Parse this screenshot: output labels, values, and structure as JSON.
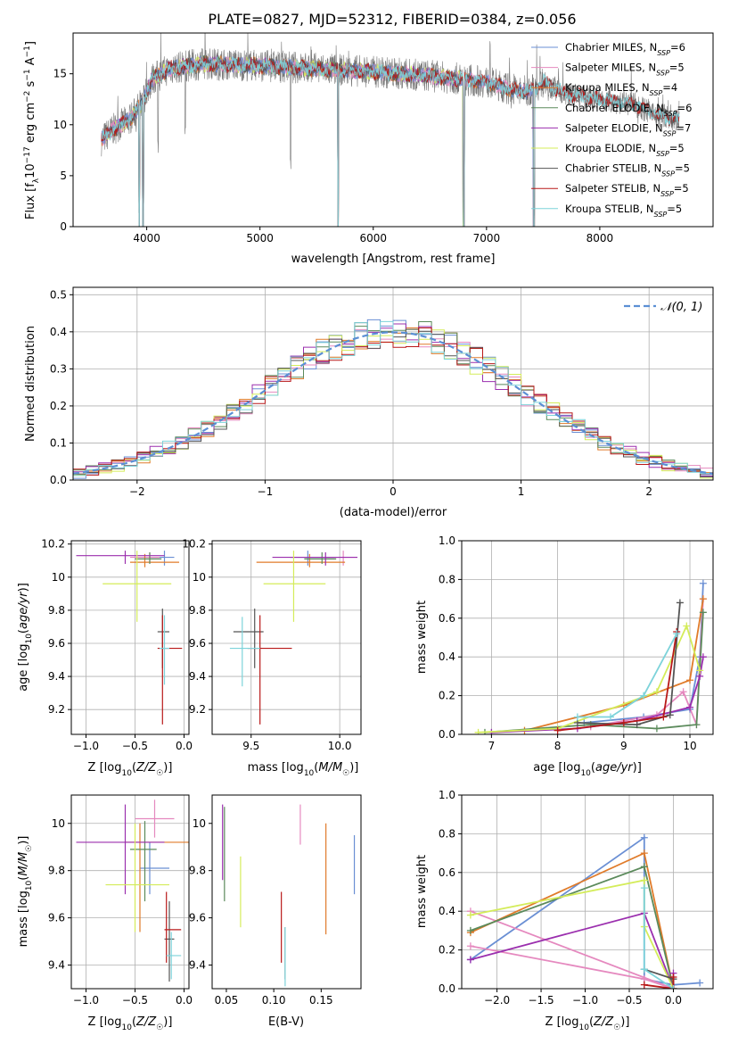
{
  "figure_title": "PLATE=0827, MJD=52312, FIBERID=0384, z=0.056",
  "colors": {
    "Chabrier MILES": "#6a8fd4",
    "Salpeter MILES": "#e589bf",
    "Kroupa MILES": "#e07b2a",
    "Chabrier ELODIE": "#5b8a5b",
    "Salpeter ELODIE": "#9b2fae",
    "Kroupa ELODIE": "#d4ec5a",
    "Chabrier STELIB": "#555555",
    "Salpeter STELIB": "#b81818",
    "Kroupa STELIB": "#7dd3da",
    "data_spectrum": "#777777",
    "normal_curve": "#5b8fd4"
  },
  "chart_data": [
    {
      "id": "spectrum",
      "type": "line",
      "xlabel": "wavelength [Angstrom, rest frame]",
      "ylabel": "Flux [f_λ 10^-17 erg cm^-2 s^-1 A^-1]",
      "xlim": [
        3350,
        9000
      ],
      "ylim": [
        0,
        19
      ],
      "xticks": [
        4000,
        5000,
        6000,
        7000,
        8000
      ],
      "yticks": [
        0,
        5,
        10,
        15
      ],
      "grid": false,
      "legend_position": "top-right",
      "legend": [
        {
          "name": "Chabrier MILES",
          "nssp": "6"
        },
        {
          "name": "Salpeter MILES",
          "nssp": "5"
        },
        {
          "name": "Kroupa MILES",
          "nssp": "4"
        },
        {
          "name": "Chabrier ELODIE",
          "nssp": "6"
        },
        {
          "name": "Salpeter ELODIE",
          "nssp": "7"
        },
        {
          "name": "Kroupa ELODIE",
          "nssp": "5"
        },
        {
          "name": "Chabrier STELIB",
          "nssp": "5"
        },
        {
          "name": "Salpeter STELIB",
          "nssp": "5"
        },
        {
          "name": "Kroupa STELIB",
          "nssp": "5"
        }
      ],
      "continuum": [
        [
          3600,
          8.5
        ],
        [
          3700,
          9.5
        ],
        [
          3850,
          10.5
        ],
        [
          3950,
          12
        ],
        [
          4050,
          14.5
        ],
        [
          4200,
          15.5
        ],
        [
          4500,
          16
        ],
        [
          5000,
          15.8
        ],
        [
          5500,
          15.5
        ],
        [
          6000,
          15.2
        ],
        [
          6500,
          14.8
        ],
        [
          7000,
          14.2
        ],
        [
          7200,
          13.5
        ],
        [
          7300,
          13.2
        ],
        [
          7400,
          13.4
        ],
        [
          7500,
          14.2
        ],
        [
          7700,
          13
        ],
        [
          8000,
          12.5
        ],
        [
          8300,
          12
        ],
        [
          8500,
          11
        ],
        [
          8700,
          10.5
        ]
      ],
      "dips": [
        [
          3933,
          0
        ],
        [
          3968,
          0
        ],
        [
          4100,
          7
        ],
        [
          4340,
          8
        ],
        [
          5270,
          5
        ],
        [
          5690,
          0
        ],
        [
          6800,
          0
        ],
        [
          7420,
          0
        ]
      ]
    },
    {
      "id": "residuals",
      "type": "line",
      "xlabel": "(data-model)/error",
      "ylabel": "Normed distribution",
      "xlim": [
        -2.5,
        2.5
      ],
      "ylim": [
        0,
        0.52
      ],
      "xticks": [
        -2,
        -1,
        0,
        1,
        2
      ],
      "xtick_labels": [
        "−2",
        "−1",
        "0",
        "1",
        "2"
      ],
      "yticks": [
        0.0,
        0.1,
        0.2,
        0.3,
        0.4,
        0.5
      ],
      "grid": true,
      "legend_position": "top-right",
      "legend_label": "𝒩(0, 1)",
      "bin_width": 0.1
    },
    {
      "id": "age-vs-Z",
      "type": "scatter",
      "xlabel": "Z [log10(Z/Z☉)]",
      "ylabel": "age  [log10(age/yr)]",
      "xlim": [
        -1.15,
        0.05
      ],
      "ylim": [
        9.05,
        10.22
      ],
      "xticks": [
        -1.0,
        -0.5,
        0.0
      ],
      "xtick_labels": [
        "−1.0",
        "−0.5",
        "0.0"
      ],
      "yticks": [
        9.2,
        9.4,
        9.6,
        9.8,
        10.0,
        10.2
      ],
      "grid": true,
      "points": [
        {
          "model": "Chabrier MILES",
          "x": -0.2,
          "y": 10.12,
          "xerr": [
            0.15,
            0.1
          ],
          "yerr": [
            0.05,
            0.04
          ]
        },
        {
          "model": "Salpeter MILES",
          "x": -0.35,
          "y": 10.12,
          "xerr": [
            0.2,
            0.1
          ],
          "yerr": [
            0.03,
            0.03
          ]
        },
        {
          "model": "Kroupa MILES",
          "x": -0.4,
          "y": 10.09,
          "xerr": [
            0.15,
            0.35
          ],
          "yerr": [
            0.03,
            0.05
          ]
        },
        {
          "model": "Chabrier ELODIE",
          "x": -0.35,
          "y": 10.11,
          "xerr": [
            0.15,
            0.12
          ],
          "yerr": [
            0.03,
            0.04
          ]
        },
        {
          "model": "Salpeter ELODIE",
          "x": -0.6,
          "y": 10.13,
          "xerr": [
            0.5,
            0.4
          ],
          "yerr": [
            0.05,
            0.03
          ]
        },
        {
          "model": "Kroupa ELODIE",
          "x": -0.48,
          "y": 9.96,
          "xerr": [
            0.35,
            0.35
          ],
          "yerr": [
            0.23,
            0.2
          ]
        },
        {
          "model": "Chabrier STELIB",
          "x": -0.22,
          "y": 9.67,
          "xerr": [
            0.05,
            0.07
          ],
          "yerr": [
            0.22,
            0.14
          ]
        },
        {
          "model": "Salpeter STELIB",
          "x": -0.22,
          "y": 9.57,
          "xerr": [
            0.05,
            0.2
          ],
          "yerr": [
            0.46,
            0.2
          ]
        },
        {
          "model": "Kroupa STELIB",
          "x": -0.2,
          "y": 9.57,
          "xerr": [
            0.05,
            0.05
          ],
          "yerr": [
            0.22,
            0.2
          ]
        }
      ]
    },
    {
      "id": "age-vs-mass",
      "type": "scatter",
      "xlabel": "mass [log10(M/M☉)]",
      "ylabel": "",
      "xlim": [
        9.28,
        10.12
      ],
      "ylim": [
        9.05,
        10.22
      ],
      "xticks": [
        9.5,
        10.0
      ],
      "xtick_labels": [
        "9.5",
        "10.0"
      ],
      "yticks": [
        9.2,
        9.4,
        9.6,
        9.8,
        10.0,
        10.2
      ],
      "grid": true,
      "points": [
        {
          "model": "Chabrier MILES",
          "x": 9.82,
          "y": 10.12,
          "xerr": [
            0.1,
            0.15
          ],
          "yerr": [
            0.05,
            0.04
          ]
        },
        {
          "model": "Salpeter MILES",
          "x": 10.02,
          "y": 10.12,
          "xerr": [
            0.1,
            0.08
          ],
          "yerr": [
            0.05,
            0.04
          ]
        },
        {
          "model": "Kroupa MILES",
          "x": 9.83,
          "y": 10.09,
          "xerr": [
            0.3,
            0.2
          ],
          "yerr": [
            0.03,
            0.05
          ]
        },
        {
          "model": "Chabrier ELODIE",
          "x": 9.9,
          "y": 10.11,
          "xerr": [
            0.1,
            0.08
          ],
          "yerr": [
            0.03,
            0.04
          ]
        },
        {
          "model": "Salpeter ELODIE",
          "x": 9.92,
          "y": 10.12,
          "xerr": [
            0.3,
            0.18
          ],
          "yerr": [
            0.05,
            0.03
          ]
        },
        {
          "model": "Kroupa ELODIE",
          "x": 9.74,
          "y": 9.96,
          "xerr": [
            0.17,
            0.18
          ],
          "yerr": [
            0.23,
            0.2
          ]
        },
        {
          "model": "Chabrier STELIB",
          "x": 9.52,
          "y": 9.67,
          "xerr": [
            0.12,
            0.05
          ],
          "yerr": [
            0.22,
            0.14
          ]
        },
        {
          "model": "Salpeter STELIB",
          "x": 9.55,
          "y": 9.57,
          "xerr": [
            0.07,
            0.18
          ],
          "yerr": [
            0.46,
            0.2
          ]
        },
        {
          "model": "Kroupa STELIB",
          "x": 9.45,
          "y": 9.57,
          "xerr": [
            0.07,
            0.1
          ],
          "yerr": [
            0.23,
            0.19
          ]
        }
      ]
    },
    {
      "id": "weight-vs-age",
      "type": "line",
      "xlabel": "age  [log10(age/yr)]",
      "ylabel": "mass weight",
      "xlim": [
        6.55,
        10.35
      ],
      "ylim": [
        0,
        1.0
      ],
      "xticks": [
        7,
        8,
        9,
        10
      ],
      "yticks": [
        0.0,
        0.2,
        0.4,
        0.6,
        0.8,
        1.0
      ],
      "grid": true,
      "series": [
        {
          "model": "Chabrier MILES",
          "x": [
            8.4,
            9.3,
            10.0,
            10.15,
            10.2
          ],
          "y": [
            0.06,
            0.09,
            0.13,
            0.4,
            0.78
          ]
        },
        {
          "model": "Salpeter MILES",
          "x": [
            8.5,
            9.5,
            9.9,
            10.1,
            10.2
          ],
          "y": [
            0.04,
            0.1,
            0.22,
            0.05,
            0.7
          ]
        },
        {
          "model": "Kroupa MILES",
          "x": [
            7.5,
            9.0,
            10.0,
            10.2
          ],
          "y": [
            0.02,
            0.15,
            0.28,
            0.7
          ]
        },
        {
          "model": "Chabrier ELODIE",
          "x": [
            6.9,
            8.5,
            9.5,
            10.1,
            10.2
          ],
          "y": [
            0.01,
            0.05,
            0.03,
            0.05,
            0.63
          ]
        },
        {
          "model": "Salpeter ELODIE",
          "x": [
            7.0,
            8.3,
            9.2,
            10.0,
            10.15,
            10.2
          ],
          "y": [
            0.01,
            0.03,
            0.07,
            0.14,
            0.3,
            0.4
          ]
        },
        {
          "model": "Kroupa ELODIE",
          "x": [
            6.8,
            8.0,
            9.5,
            9.95,
            10.15
          ],
          "y": [
            0.01,
            0.03,
            0.22,
            0.56,
            0.33
          ]
        },
        {
          "model": "Chabrier STELIB",
          "x": [
            8.3,
            9.2,
            9.7,
            9.85
          ],
          "y": [
            0.06,
            0.05,
            0.1,
            0.68
          ]
        },
        {
          "model": "Salpeter STELIB",
          "x": [
            8.0,
            9.0,
            9.6,
            9.8
          ],
          "y": [
            0.02,
            0.06,
            0.09,
            0.53
          ]
        },
        {
          "model": "Kroupa STELIB",
          "x": [
            8.3,
            8.8,
            9.3,
            9.8
          ],
          "y": [
            0.09,
            0.09,
            0.2,
            0.52
          ]
        }
      ]
    },
    {
      "id": "mass-vs-Z",
      "type": "scatter",
      "xlabel": "Z [log10(Z/Z☉)]",
      "ylabel": "mass [log10(M/M☉)]",
      "xlim": [
        -1.15,
        0.05
      ],
      "ylim": [
        9.3,
        10.12
      ],
      "xticks": [
        -1.0,
        -0.5,
        0.0
      ],
      "xtick_labels": [
        "−1.0",
        "−0.5",
        "0.0"
      ],
      "yticks": [
        9.4,
        9.6,
        9.8,
        10.0
      ],
      "grid": true,
      "points": [
        {
          "model": "Chabrier MILES",
          "x": -0.35,
          "y": 9.81,
          "xerr": [
            0.1,
            0.2
          ],
          "yerr": [
            0.11,
            0.11
          ]
        },
        {
          "model": "Salpeter MILES",
          "x": -0.3,
          "y": 10.02,
          "xerr": [
            0.2,
            0.2
          ],
          "yerr": [
            0.08,
            0.08
          ]
        },
        {
          "model": "Kroupa MILES",
          "x": -0.45,
          "y": 9.92,
          "xerr": [
            0.15,
            0.5
          ],
          "yerr": [
            0.38,
            0.08
          ]
        },
        {
          "model": "Chabrier ELODIE",
          "x": -0.4,
          "y": 9.89,
          "xerr": [
            0.15,
            0.12
          ],
          "yerr": [
            0.22,
            0.12
          ]
        },
        {
          "model": "Salpeter ELODIE",
          "x": -0.6,
          "y": 9.92,
          "xerr": [
            0.5,
            0.4
          ],
          "yerr": [
            0.22,
            0.16
          ]
        },
        {
          "model": "Kroupa ELODIE",
          "x": -0.5,
          "y": 9.74,
          "xerr": [
            0.3,
            0.35
          ],
          "yerr": [
            0.2,
            0.26
          ]
        },
        {
          "model": "Chabrier STELIB",
          "x": -0.15,
          "y": 9.51,
          "xerr": [
            0.05,
            0.05
          ],
          "yerr": [
            0.18,
            0.16
          ]
        },
        {
          "model": "Salpeter STELIB",
          "x": -0.18,
          "y": 9.55,
          "xerr": [
            0.02,
            0.15
          ],
          "yerr": [
            0.14,
            0.16
          ]
        },
        {
          "model": "Kroupa STELIB",
          "x": -0.13,
          "y": 9.44,
          "xerr": [
            0.05,
            0.1
          ],
          "yerr": [
            0.1,
            0.1
          ]
        }
      ]
    },
    {
      "id": "mass-vs-ebv",
      "type": "scatter",
      "xlabel": "E(B-V)",
      "ylabel": "",
      "xlim": [
        0.035,
        0.192
      ],
      "ylim": [
        9.3,
        10.12
      ],
      "xticks": [
        0.05,
        0.1,
        0.15
      ],
      "xtick_labels": [
        "0.05",
        "0.10",
        "0.15"
      ],
      "yticks": [
        9.4,
        9.6,
        9.8,
        10.0
      ],
      "grid": false,
      "points": [
        {
          "model": "Chabrier MILES",
          "x": 0.185,
          "y": 9.82,
          "yerr": [
            0.12,
            0.13
          ]
        },
        {
          "model": "Salpeter MILES",
          "x": 0.128,
          "y": 9.99,
          "yerr": [
            0.08,
            0.09
          ]
        },
        {
          "model": "Kroupa MILES",
          "x": 0.155,
          "y": 9.77,
          "yerr": [
            0.24,
            0.23
          ]
        },
        {
          "model": "Chabrier ELODIE",
          "x": 0.048,
          "y": 9.87,
          "yerr": [
            0.2,
            0.2
          ]
        },
        {
          "model": "Salpeter ELODIE",
          "x": 0.046,
          "y": 9.91,
          "yerr": [
            0.15,
            0.17
          ]
        },
        {
          "model": "Kroupa ELODIE",
          "x": 0.065,
          "y": 9.71,
          "yerr": [
            0.15,
            0.15
          ]
        },
        {
          "model": "Chabrier STELIB",
          "x": 0.112,
          "y": 9.47,
          "yerr": [
            0.13,
            0.09
          ]
        },
        {
          "model": "Salpeter STELIB",
          "x": 0.108,
          "y": 9.56,
          "yerr": [
            0.15,
            0.15
          ]
        },
        {
          "model": "Kroupa STELIB",
          "x": 0.112,
          "y": 9.45,
          "yerr": [
            0.14,
            0.11
          ]
        }
      ]
    },
    {
      "id": "weight-vs-Z",
      "type": "line",
      "xlabel": "Z [log10(Z/Z☉)]",
      "ylabel": "mass weight",
      "xlim": [
        -2.4,
        0.45
      ],
      "ylim": [
        0,
        1.0
      ],
      "xticks": [
        -2.0,
        -1.5,
        -1.0,
        -0.5,
        0.0
      ],
      "xtick_labels": [
        "−2.0",
        "−1.5",
        "−1.0",
        "−0.5",
        "0.0"
      ],
      "yticks": [
        0.0,
        0.2,
        0.4,
        0.6,
        0.8,
        1.0
      ],
      "grid": true,
      "series": [
        {
          "model": "Chabrier MILES",
          "x": [
            -2.3,
            -0.33,
            -0.33,
            0.0,
            0.3
          ],
          "y": [
            0.15,
            0.78,
            0.05,
            0.02,
            0.03
          ]
        },
        {
          "model": "Salpeter MILES",
          "x": [
            -2.3,
            -0.33,
            0.0,
            -2.3
          ],
          "y": [
            0.22,
            0.05,
            0.0,
            0.4
          ]
        },
        {
          "model": "Kroupa MILES",
          "x": [
            -2.3,
            -0.33,
            0.0
          ],
          "y": [
            0.29,
            0.7,
            0.0
          ]
        },
        {
          "model": "Chabrier ELODIE",
          "x": [
            -2.3,
            -0.33,
            0.0,
            0.0
          ],
          "y": [
            0.3,
            0.63,
            0.0,
            0.05
          ]
        },
        {
          "model": "Salpeter ELODIE",
          "x": [
            -2.3,
            -0.33,
            0.0,
            0.0
          ],
          "y": [
            0.15,
            0.39,
            0.0,
            0.08
          ]
        },
        {
          "model": "Kroupa ELODIE",
          "x": [
            -2.3,
            -0.33,
            -0.33,
            0.0
          ],
          "y": [
            0.38,
            0.56,
            0.32,
            0.0
          ]
        },
        {
          "model": "Chabrier STELIB",
          "x": [
            -0.33,
            0.0,
            0.0
          ],
          "y": [
            0.1,
            0.05,
            0.0
          ]
        },
        {
          "model": "Salpeter STELIB",
          "x": [
            -0.33,
            0.0,
            0.0
          ],
          "y": [
            0.02,
            0.0,
            0.06
          ]
        },
        {
          "model": "Kroupa STELIB",
          "x": [
            -0.33,
            -0.33,
            0.0
          ],
          "y": [
            0.52,
            0.1,
            0.0
          ]
        }
      ]
    }
  ]
}
